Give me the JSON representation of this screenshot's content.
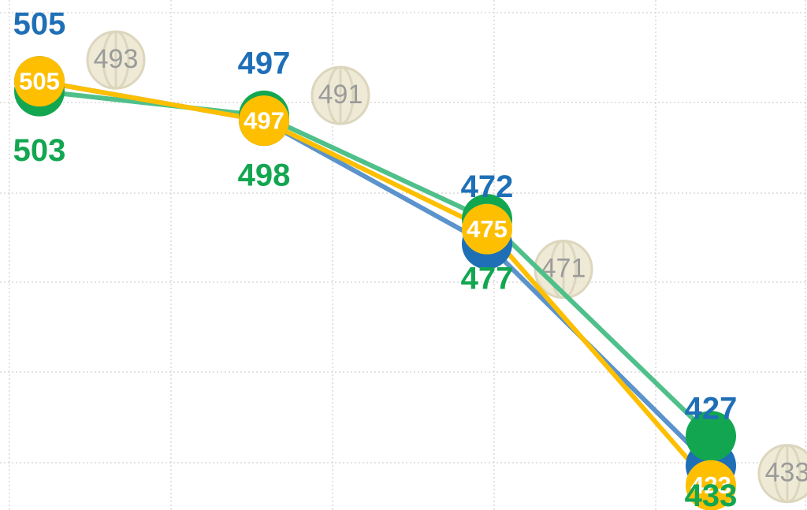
{
  "chart_data": {
    "type": "line",
    "ylim": [
      418,
      521.5
    ],
    "series": [
      {
        "color": "#1f6fb7",
        "line_color": "#5b93cc",
        "values": [
          505,
          497,
          472,
          427
        ]
      },
      {
        "color": "#13a651",
        "line_color": "#4fc08a",
        "values": [
          503,
          498,
          477,
          433
        ]
      },
      {
        "color": "#fdbf00",
        "line_color": "#fdbf00",
        "values": [
          505,
          497,
          475,
          423
        ]
      }
    ],
    "reference": {
      "color": "#ece7d0",
      "values": [
        493,
        491,
        471,
        433
      ]
    }
  }
}
